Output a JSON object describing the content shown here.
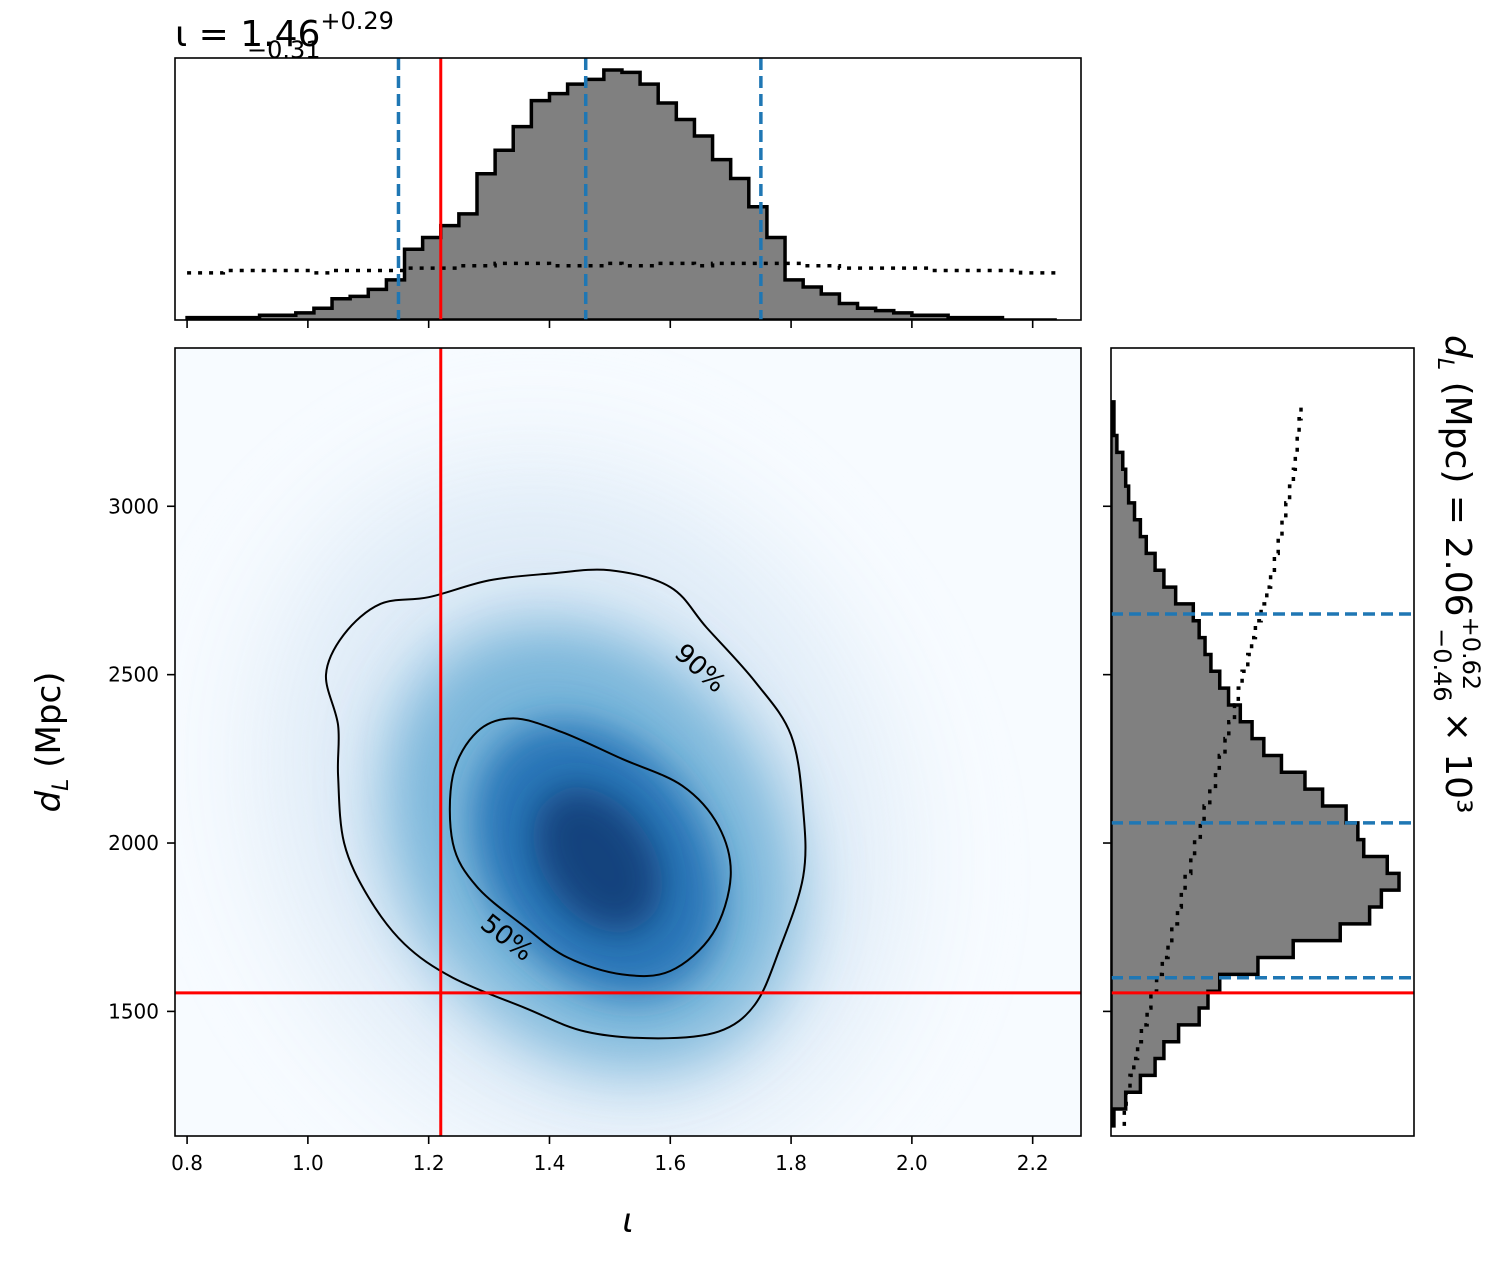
{
  "chart_data": {
    "type": "corner",
    "panels": {
      "top_histogram": {
        "type": "step-histogram",
        "title": {
          "symbol": "ι",
          "median": "1.46",
          "plus": "+0.29",
          "minus": "−0.31"
        },
        "xlim": [
          0.78,
          2.28
        ],
        "bin_edges": [
          0.8,
          0.83,
          0.86,
          0.89,
          0.92,
          0.95,
          0.98,
          1.01,
          1.04,
          1.07,
          1.1,
          1.13,
          1.16,
          1.19,
          1.22,
          1.25,
          1.28,
          1.31,
          1.34,
          1.37,
          1.4,
          1.43,
          1.46,
          1.49,
          1.52,
          1.55,
          1.58,
          1.61,
          1.64,
          1.67,
          1.7,
          1.73,
          1.76,
          1.79,
          1.82,
          1.85,
          1.88,
          1.91,
          1.94,
          1.97,
          2.0,
          2.03,
          2.06,
          2.09,
          2.12,
          2.15,
          2.18,
          2.21,
          2.24
        ],
        "posterior_density": [
          0.01,
          0.01,
          0.01,
          0.01,
          0.02,
          0.02,
          0.03,
          0.05,
          0.09,
          0.1,
          0.13,
          0.17,
          0.3,
          0.35,
          0.4,
          0.45,
          0.62,
          0.72,
          0.82,
          0.93,
          0.96,
          1.0,
          1.02,
          1.06,
          1.05,
          1.0,
          0.92,
          0.85,
          0.78,
          0.68,
          0.6,
          0.48,
          0.35,
          0.17,
          0.14,
          0.11,
          0.07,
          0.05,
          0.04,
          0.03,
          0.02,
          0.02,
          0.01,
          0.01,
          0.01,
          0.0,
          0.0,
          0.0
        ],
        "prior_density": [
          0.2,
          0.2,
          0.21,
          0.21,
          0.21,
          0.21,
          0.21,
          0.2,
          0.21,
          0.21,
          0.21,
          0.21,
          0.22,
          0.22,
          0.22,
          0.23,
          0.23,
          0.24,
          0.24,
          0.24,
          0.23,
          0.23,
          0.23,
          0.24,
          0.23,
          0.23,
          0.24,
          0.24,
          0.23,
          0.24,
          0.24,
          0.24,
          0.24,
          0.24,
          0.23,
          0.23,
          0.22,
          0.22,
          0.22,
          0.22,
          0.22,
          0.21,
          0.21,
          0.21,
          0.21,
          0.21,
          0.2,
          0.2
        ],
        "median_line": 1.46,
        "credible_bounds": [
          1.15,
          1.75
        ],
        "injected_value": 1.22
      },
      "joint": {
        "type": "2d-density",
        "xlabel": "ι",
        "ylabel": "d_L (Mpc)",
        "xlim": [
          0.78,
          2.28
        ],
        "ylim": [
          1130,
          3470
        ],
        "xticks": [
          0.8,
          1.0,
          1.2,
          1.4,
          1.6,
          1.8,
          2.0,
          2.2
        ],
        "xtick_labels": [
          "0.8",
          "1.0",
          "1.2",
          "1.4",
          "1.6",
          "1.8",
          "2.0",
          "2.2"
        ],
        "yticks": [
          1500,
          2000,
          2500,
          3000
        ],
        "ytick_labels": [
          "1500",
          "2000",
          "2500",
          "3000"
        ],
        "colormap": "Blues",
        "peak": {
          "iota": 1.48,
          "dL": 1950
        },
        "contours": [
          {
            "label": "50%",
            "points": [
              [
                1.24,
                2200
              ],
              [
                1.28,
                2330
              ],
              [
                1.34,
                2370
              ],
              [
                1.42,
                2330
              ],
              [
                1.52,
                2250
              ],
              [
                1.62,
                2170
              ],
              [
                1.68,
                2050
              ],
              [
                1.7,
                1900
              ],
              [
                1.67,
                1730
              ],
              [
                1.6,
                1620
              ],
              [
                1.52,
                1610
              ],
              [
                1.43,
                1660
              ],
              [
                1.36,
                1750
              ],
              [
                1.28,
                1870
              ],
              [
                1.24,
                2000
              ]
            ]
          },
          {
            "label": "90%",
            "points": [
              [
                1.03,
                2500
              ],
              [
                1.06,
                2620
              ],
              [
                1.12,
                2710
              ],
              [
                1.2,
                2730
              ],
              [
                1.3,
                2780
              ],
              [
                1.4,
                2800
              ],
              [
                1.5,
                2810
              ],
              [
                1.6,
                2760
              ],
              [
                1.66,
                2640
              ],
              [
                1.74,
                2480
              ],
              [
                1.8,
                2320
              ],
              [
                1.82,
                2100
              ],
              [
                1.82,
                1900
              ],
              [
                1.78,
                1680
              ],
              [
                1.74,
                1520
              ],
              [
                1.68,
                1440
              ],
              [
                1.58,
                1420
              ],
              [
                1.46,
                1440
              ],
              [
                1.36,
                1510
              ],
              [
                1.24,
                1600
              ],
              [
                1.16,
                1700
              ],
              [
                1.1,
                1840
              ],
              [
                1.06,
                2000
              ],
              [
                1.05,
                2200
              ],
              [
                1.05,
                2350
              ]
            ]
          }
        ],
        "injected": {
          "iota": 1.22,
          "dL": 1555
        }
      },
      "right_histogram": {
        "type": "step-histogram",
        "orientation": "horizontal",
        "title": {
          "label": "d_L (Mpc)",
          "median": "2.06",
          "plus": "+0.62",
          "minus": "−0.46",
          "scale": "× 10³"
        },
        "ylim": [
          1130,
          3470
        ],
        "bin_edges": [
          1160,
          1210,
          1260,
          1310,
          1360,
          1410,
          1460,
          1510,
          1560,
          1610,
          1660,
          1710,
          1760,
          1810,
          1860,
          1910,
          1960,
          2010,
          2060,
          2110,
          2160,
          2210,
          2260,
          2310,
          2360,
          2410,
          2460,
          2510,
          2560,
          2610,
          2660,
          2710,
          2760,
          2810,
          2860,
          2910,
          2960,
          3010,
          3060,
          3110,
          3160,
          3210,
          3260,
          3310
        ],
        "posterior_density": [
          0.01,
          0.05,
          0.1,
          0.15,
          0.18,
          0.23,
          0.3,
          0.33,
          0.37,
          0.5,
          0.62,
          0.78,
          0.88,
          0.92,
          0.98,
          0.94,
          0.86,
          0.84,
          0.8,
          0.72,
          0.66,
          0.58,
          0.52,
          0.48,
          0.44,
          0.4,
          0.37,
          0.34,
          0.32,
          0.3,
          0.28,
          0.22,
          0.18,
          0.15,
          0.12,
          0.1,
          0.08,
          0.06,
          0.05,
          0.04,
          0.02,
          0.01,
          0.01
        ],
        "prior_density": [
          0.07,
          0.08,
          0.1,
          0.12,
          0.14,
          0.16,
          0.19,
          0.21,
          0.24,
          0.27,
          0.3,
          0.32,
          0.35,
          0.37,
          0.39,
          0.42,
          0.44,
          0.47,
          0.49,
          0.52,
          0.55,
          0.57,
          0.6,
          0.62,
          0.65,
          0.67,
          0.69,
          0.72,
          0.74,
          0.76,
          0.79,
          0.82,
          0.84,
          0.86,
          0.88,
          0.9,
          0.92,
          0.94,
          0.96,
          0.97,
          0.98,
          0.99,
          1.0
        ],
        "median_line": 2060,
        "credible_bounds": [
          1600,
          2680
        ],
        "injected_value": 1555
      }
    },
    "colors": {
      "hist_fill": "#808080",
      "hist_edge": "#000000",
      "quantile_lines": "#1f77b4",
      "injection": "#ff0000",
      "contour": "#000000"
    }
  }
}
